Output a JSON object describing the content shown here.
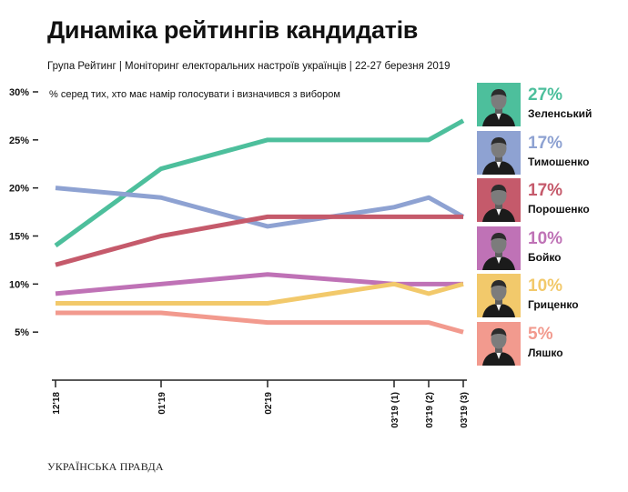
{
  "header": {
    "title": "Динаміка рейтингів кандидатів",
    "subtitle": "Група Рейтинг | Моніторинг електоральних настроїв українців | 22-27 березня 2019"
  },
  "brand": "УКРАЇНСЬКА ПРАВДА",
  "chart_data": {
    "type": "line",
    "title": "Динаміка рейтингів кандидатів",
    "annotation": "% серед тих, хто має намір голосувати і визначився з вибором",
    "categories": [
      "12'18",
      "01'19",
      "02'19",
      "03'19 (1)",
      "03'19 (2)",
      "03'19 (3)"
    ],
    "ylim": [
      0,
      30
    ],
    "yticks": [
      5,
      10,
      15,
      20,
      25,
      30
    ],
    "ytick_labels": [
      "5%",
      "10%",
      "15%",
      "20%",
      "25%",
      "30%"
    ],
    "grid": false,
    "legend_position": "right",
    "series": [
      {
        "name": "Зеленський",
        "label": "27%",
        "color": "#4dbf9c",
        "values": [
          14,
          22,
          25,
          25,
          25,
          27
        ]
      },
      {
        "name": "Тимошенко",
        "label": "17%",
        "color": "#8ea2d2",
        "values": [
          20,
          19,
          16,
          18,
          19,
          17
        ]
      },
      {
        "name": "Порошенко",
        "label": "17%",
        "color": "#c55a6b",
        "values": [
          12,
          15,
          17,
          17,
          17,
          17
        ]
      },
      {
        "name": "Бойко",
        "label": "10%",
        "color": "#bf72b6",
        "values": [
          9,
          10,
          11,
          10,
          10,
          10
        ]
      },
      {
        "name": "Гриценко",
        "label": "10%",
        "color": "#f2c96b",
        "values": [
          8,
          8,
          8,
          10,
          9,
          10
        ]
      },
      {
        "name": "Ляшко",
        "label": "5%",
        "color": "#f29a8e",
        "values": [
          7,
          7,
          6,
          6,
          6,
          5
        ]
      }
    ]
  }
}
